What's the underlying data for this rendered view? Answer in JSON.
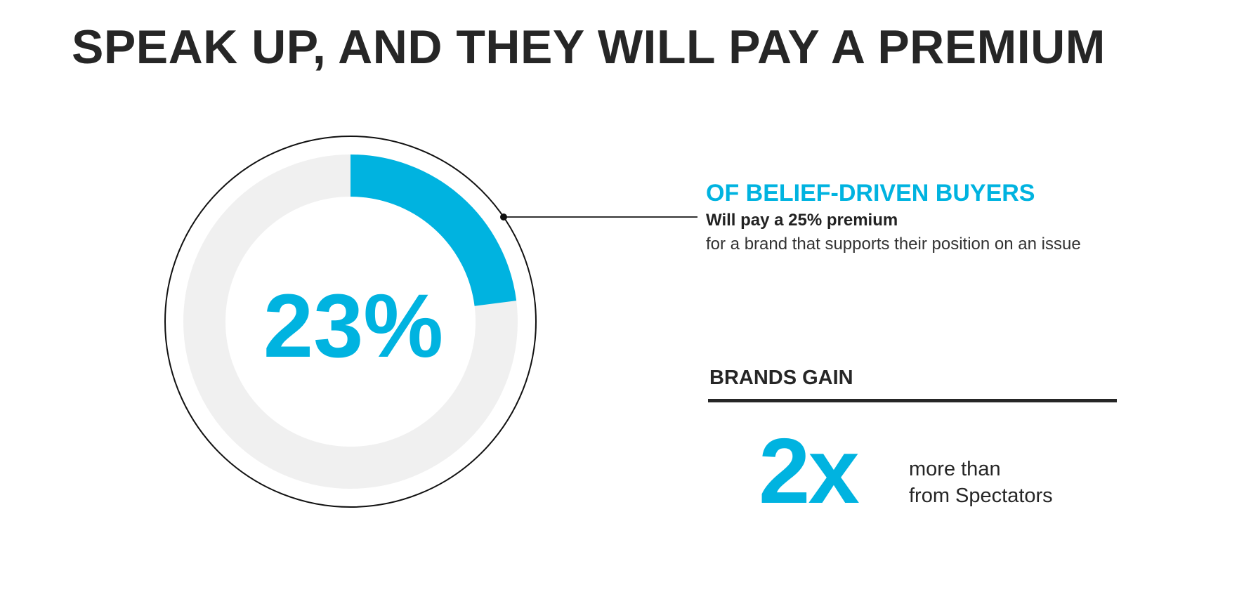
{
  "title": "SPEAK UP, AND THEY WILL PAY A PREMIUM",
  "chart_data": {
    "type": "pie",
    "style": "donut-progress",
    "value_percent": 23,
    "center_label": "23%",
    "colors": {
      "value": "#00b3e0",
      "track": "#f0f0f0",
      "outline": "#111111"
    }
  },
  "callout": {
    "heading": "OF BELIEF-DRIVEN BUYERS",
    "subheading": "Will pay a 25% premium",
    "description": "for a brand that supports their position on an issue"
  },
  "brands": {
    "heading": "BRANDS GAIN",
    "big_number": "2x",
    "line1": "more than",
    "line2": "from Spectators"
  },
  "colors": {
    "accent": "#00b3e0",
    "text": "#262626"
  }
}
